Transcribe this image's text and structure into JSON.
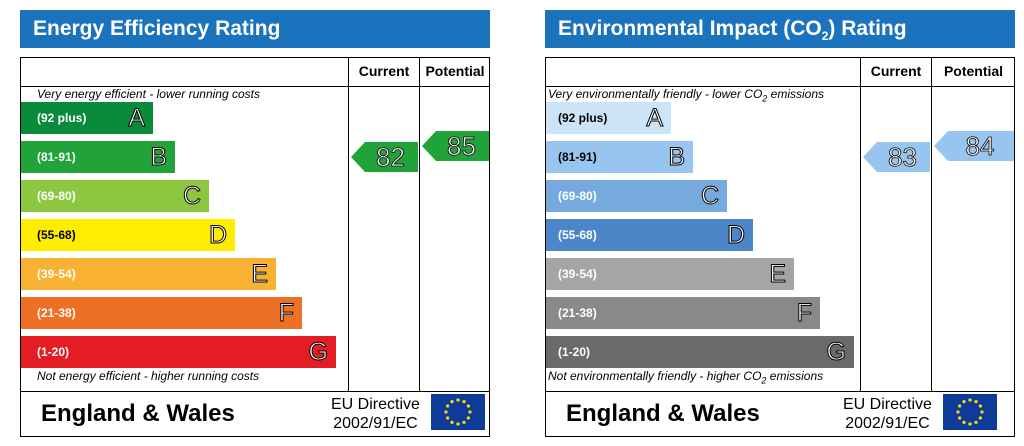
{
  "colors": {
    "title_bg": "#1c73bd",
    "ee_bands": [
      "#0b8a3c",
      "#21a339",
      "#8dc73f",
      "#ffed00",
      "#f8b133",
      "#ee7024",
      "#e31d23"
    ],
    "ei_bands": [
      "#cde4f8",
      "#97c5f0",
      "#76aade",
      "#4d86c8",
      "#a5a5a5",
      "#898989",
      "#6a6a6a"
    ],
    "eu_flag": "#0e3a98",
    "eu_star": "#ffdd00"
  },
  "icons": {
    "eu_flag": "eu-flag-icon"
  },
  "chart_data": [
    {
      "type": "bar",
      "title": "Energy Efficiency Rating",
      "columns": [
        "Current",
        "Potential"
      ],
      "top_caption": "Very energy efficient - lower running costs",
      "bottom_caption": "Not energy efficient - higher running costs",
      "bands": [
        {
          "range": "(92 plus)",
          "letter": "A"
        },
        {
          "range": "(81-91)",
          "letter": "B"
        },
        {
          "range": "(69-80)",
          "letter": "C"
        },
        {
          "range": "(55-68)",
          "letter": "D"
        },
        {
          "range": "(39-54)",
          "letter": "E"
        },
        {
          "range": "(21-38)",
          "letter": "F"
        },
        {
          "range": "(1-20)",
          "letter": "G"
        }
      ],
      "current": 82,
      "potential": 85,
      "current_band": "B",
      "potential_band": "B",
      "footer": {
        "country": "England & Wales",
        "directive_line1": "EU Directive",
        "directive_line2": "2002/91/EC"
      }
    },
    {
      "type": "bar",
      "title_main": "Environmental Impact (CO",
      "title_sub": "2",
      "title_end": ") Rating",
      "columns": [
        "Current",
        "Potential"
      ],
      "top_caption_main": "Very environmentally friendly - lower  CO",
      "top_caption_sub": "2",
      "top_caption_end": " emissions",
      "bottom_caption_main": "Not environmentally friendly - higher  CO",
      "bottom_caption_sub": "2",
      "bottom_caption_end": " emissions",
      "bands": [
        {
          "range": "(92 plus)",
          "letter": "A"
        },
        {
          "range": "(81-91)",
          "letter": "B"
        },
        {
          "range": "(69-80)",
          "letter": "C"
        },
        {
          "range": "(55-68)",
          "letter": "D"
        },
        {
          "range": "(39-54)",
          "letter": "E"
        },
        {
          "range": "(21-38)",
          "letter": "F"
        },
        {
          "range": "(1-20)",
          "letter": "G"
        }
      ],
      "current": 83,
      "potential": 84,
      "current_band": "B",
      "potential_band": "B",
      "footer": {
        "country": "England & Wales",
        "directive_line1": "EU Directive",
        "directive_line2": "2002/91/EC"
      }
    }
  ]
}
